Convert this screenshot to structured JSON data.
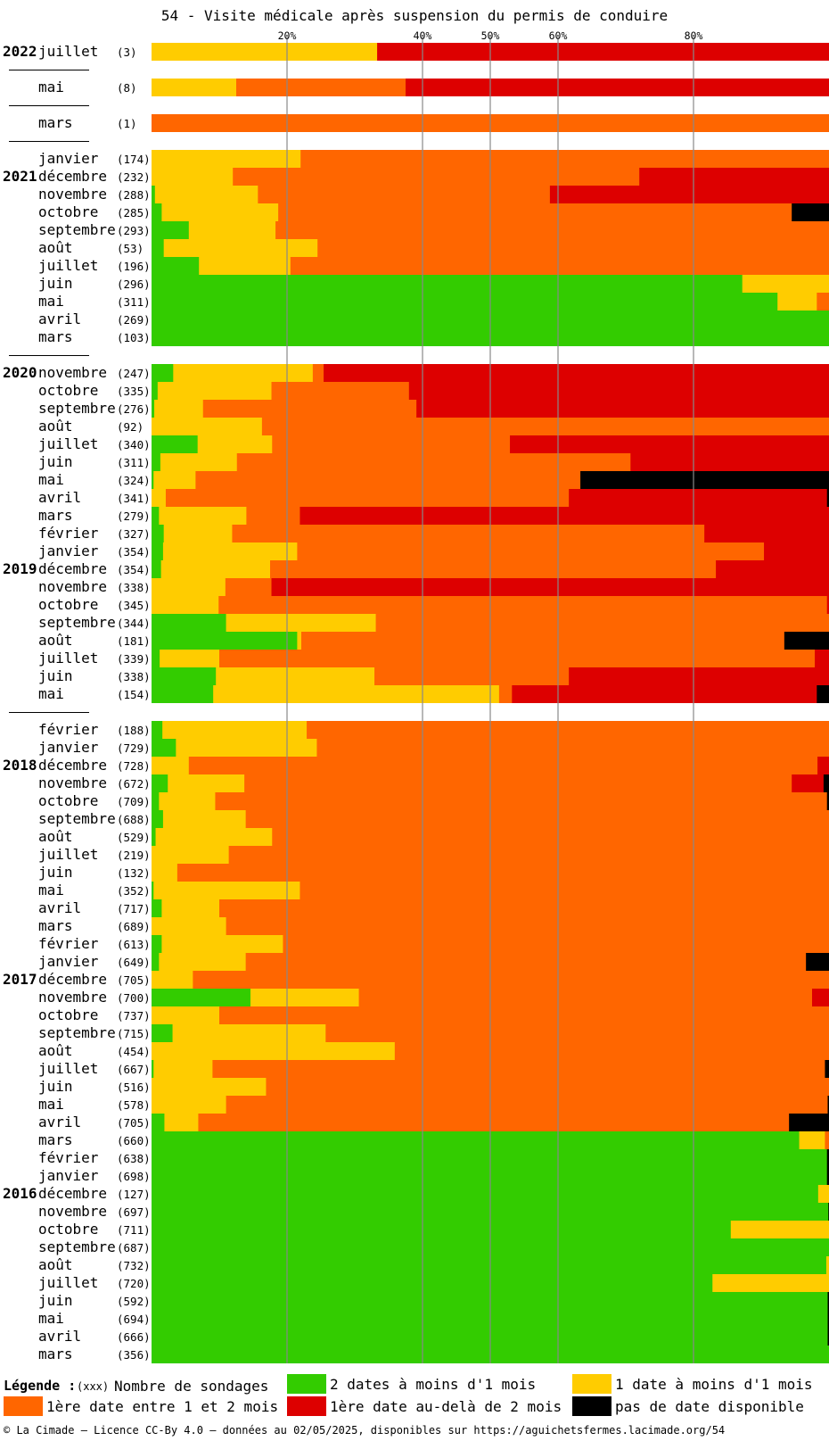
{
  "chart_data": {
    "type": "bar",
    "orientation": "horizontal",
    "stacked": true,
    "title": "54 - Visite médicale après suspension du permis de conduire",
    "x_ticks": [
      {
        "value": 20,
        "label": "20%"
      },
      {
        "value": 40,
        "label": "40%"
      },
      {
        "value": 50,
        "label": "50%"
      },
      {
        "value": 60,
        "label": "60%"
      },
      {
        "value": 80,
        "label": "80%"
      }
    ],
    "xlim": [
      0,
      100
    ],
    "categories_legend": [
      {
        "key": "g2",
        "label": "2 dates à moins d'1 mois",
        "color": "#33cc00"
      },
      {
        "key": "y1",
        "label": "1 date à moins d'1 mois",
        "color": "#ffcc00"
      },
      {
        "key": "o",
        "label": "1ère date entre 1 et 2 mois",
        "color": "#ff6600"
      },
      {
        "key": "r",
        "label": "1ère date au-delà de 2 mois",
        "color": "#dd0000"
      },
      {
        "key": "k",
        "label": "pas de date disponible",
        "color": "#000000"
      }
    ],
    "rows": [
      {
        "year": "2022",
        "month": "juillet",
        "n": "(3)",
        "v": [
          0,
          33.3,
          0,
          66.7,
          0
        ]
      },
      {
        "sep": true
      },
      {
        "month": "mai",
        "n": "(8)",
        "v": [
          0,
          12.5,
          25,
          62.5,
          0
        ]
      },
      {
        "sep": true
      },
      {
        "month": "mars",
        "n": "(1)",
        "v": [
          0,
          0,
          100,
          0,
          0
        ]
      },
      {
        "sep": true
      },
      {
        "month": "janvier",
        "n": "(174)",
        "v": [
          0,
          22,
          78,
          0,
          0
        ]
      },
      {
        "year": "2021",
        "month": "décembre",
        "n": "(232)",
        "v": [
          0,
          12,
          60,
          28,
          0
        ]
      },
      {
        "month": "novembre",
        "n": "(288)",
        "v": [
          0.5,
          15.2,
          43.1,
          41.2,
          0
        ]
      },
      {
        "month": "octobre",
        "n": "(285)",
        "v": [
          1.5,
          17.2,
          75.8,
          0,
          5.5
        ]
      },
      {
        "month": "septembre",
        "n": "(293)",
        "v": [
          5.5,
          12.8,
          81.7,
          0,
          0
        ]
      },
      {
        "month": "août",
        "n": "(53)",
        "v": [
          1.8,
          22.7,
          75.5,
          0,
          0
        ]
      },
      {
        "month": "juillet",
        "n": "(196)",
        "v": [
          7,
          13.5,
          79.5,
          0,
          0
        ]
      },
      {
        "month": "juin",
        "n": "(296)",
        "v": [
          87.2,
          12.8,
          0,
          0,
          0
        ]
      },
      {
        "month": "mai",
        "n": "(311)",
        "v": [
          92.4,
          5.8,
          1.8,
          0,
          0
        ]
      },
      {
        "month": "avril",
        "n": "(269)",
        "v": [
          100,
          0,
          0,
          0,
          0
        ]
      },
      {
        "month": "mars",
        "n": "(103)",
        "v": [
          100,
          0,
          0,
          0,
          0
        ]
      },
      {
        "sep": true
      },
      {
        "year": "2020",
        "month": "novembre",
        "n": "(247)",
        "v": [
          3.2,
          20.6,
          1.6,
          74.6,
          0
        ]
      },
      {
        "month": "octobre",
        "n": "(335)",
        "v": [
          0.9,
          16.8,
          20.3,
          62,
          0
        ]
      },
      {
        "month": "septembre",
        "n": "(276)",
        "v": [
          0.4,
          7.2,
          31.5,
          60.9,
          0
        ]
      },
      {
        "month": "août",
        "n": "(92)",
        "v": [
          0,
          16.3,
          83.7,
          0,
          0
        ]
      },
      {
        "month": "juillet",
        "n": "(340)",
        "v": [
          6.8,
          11,
          35.1,
          47.1,
          0
        ]
      },
      {
        "month": "juin",
        "n": "(311)",
        "v": [
          1.3,
          11.3,
          58.1,
          29.3,
          0
        ]
      },
      {
        "month": "mai",
        "n": "(324)",
        "v": [
          0.3,
          6.2,
          56.8,
          0,
          36.7
        ]
      },
      {
        "month": "avril",
        "n": "(341)",
        "v": [
          0,
          2.1,
          59.5,
          38.1,
          0.3
        ]
      },
      {
        "month": "mars",
        "n": "(279)",
        "v": [
          1.1,
          12.9,
          7.9,
          78.1,
          0
        ]
      },
      {
        "month": "février",
        "n": "(327)",
        "v": [
          1.8,
          10.1,
          69.7,
          18.4,
          0
        ]
      },
      {
        "month": "janvier",
        "n": "(354)",
        "v": [
          1.7,
          19.8,
          68.9,
          9.6,
          0
        ]
      },
      {
        "year": "2019",
        "month": "décembre",
        "n": "(354)",
        "v": [
          1.4,
          16.1,
          65.8,
          16.7,
          0
        ]
      },
      {
        "month": "novembre",
        "n": "(338)",
        "v": [
          0,
          10.9,
          6.8,
          82.3,
          0
        ]
      },
      {
        "month": "octobre",
        "n": "(345)",
        "v": [
          0,
          9.9,
          89.8,
          0.3,
          0
        ]
      },
      {
        "month": "septembre",
        "n": "(344)",
        "v": [
          11,
          22.1,
          66.9,
          0,
          0
        ]
      },
      {
        "month": "août",
        "n": "(181)",
        "v": [
          21.5,
          0.6,
          71.3,
          0,
          6.6
        ]
      },
      {
        "month": "juillet",
        "n": "(339)",
        "v": [
          1.2,
          8.8,
          87.9,
          2.1,
          0
        ]
      },
      {
        "month": "juin",
        "n": "(338)",
        "v": [
          9.5,
          23.4,
          28.7,
          38.4,
          0
        ]
      },
      {
        "month": "mai",
        "n": "(154)",
        "v": [
          9.1,
          42.2,
          1.9,
          45,
          1.8
        ]
      },
      {
        "sep": true
      },
      {
        "month": "février",
        "n": "(188)",
        "v": [
          1.6,
          21.3,
          77.1,
          0,
          0
        ]
      },
      {
        "month": "janvier",
        "n": "(729)",
        "v": [
          3.6,
          20.8,
          75.6,
          0,
          0
        ]
      },
      {
        "year": "2018",
        "month": "décembre",
        "n": "(728)",
        "v": [
          0,
          5.5,
          92.8,
          1.7,
          0
        ]
      },
      {
        "month": "novembre",
        "n": "(672)",
        "v": [
          2.4,
          11.3,
          80.8,
          4.7,
          0.8
        ]
      },
      {
        "month": "octobre",
        "n": "(709)",
        "v": [
          1.1,
          8.3,
          90.3,
          0,
          0.3
        ]
      },
      {
        "month": "septembre",
        "n": "(688)",
        "v": [
          1.7,
          12.2,
          86.1,
          0,
          0
        ]
      },
      {
        "month": "août",
        "n": "(529)",
        "v": [
          0.6,
          17.2,
          82.2,
          0,
          0
        ]
      },
      {
        "month": "juillet",
        "n": "(219)",
        "v": [
          0,
          11.4,
          88.6,
          0,
          0
        ]
      },
      {
        "month": "juin",
        "n": "(132)",
        "v": [
          0,
          3.8,
          96.2,
          0,
          0
        ]
      },
      {
        "month": "mai",
        "n": "(352)",
        "v": [
          0.3,
          21.6,
          78.1,
          0,
          0
        ]
      },
      {
        "month": "avril",
        "n": "(717)",
        "v": [
          1.5,
          8.5,
          90,
          0,
          0
        ]
      },
      {
        "month": "mars",
        "n": "(689)",
        "v": [
          0,
          11,
          89,
          0,
          0
        ]
      },
      {
        "month": "février",
        "n": "(613)",
        "v": [
          1.5,
          17.9,
          80.6,
          0,
          0
        ]
      },
      {
        "month": "janvier",
        "n": "(649)",
        "v": [
          1.1,
          12.8,
          82.7,
          0,
          3.4
        ]
      },
      {
        "year": "2017",
        "month": "décembre",
        "n": "(705)",
        "v": [
          0,
          6.1,
          93.9,
          0,
          0
        ]
      },
      {
        "month": "novembre",
        "n": "(700)",
        "v": [
          14.6,
          16,
          66.9,
          2.5,
          0
        ]
      },
      {
        "month": "octobre",
        "n": "(737)",
        "v": [
          0,
          10,
          90,
          0,
          0
        ]
      },
      {
        "month": "septembre",
        "n": "(715)",
        "v": [
          3.1,
          22.6,
          74.3,
          0,
          0
        ]
      },
      {
        "month": "août",
        "n": "(454)",
        "v": [
          0,
          35.9,
          64.1,
          0,
          0
        ]
      },
      {
        "month": "juillet",
        "n": "(667)",
        "v": [
          0.3,
          8.7,
          90.4,
          0,
          0.6
        ]
      },
      {
        "month": "juin",
        "n": "(516)",
        "v": [
          0,
          16.9,
          83.1,
          0,
          0
        ]
      },
      {
        "month": "mai",
        "n": "(578)",
        "v": [
          0,
          11,
          88.8,
          0,
          0.2
        ]
      },
      {
        "month": "avril",
        "n": "(705)",
        "v": [
          1.9,
          5,
          87.2,
          0,
          5.9
        ]
      },
      {
        "month": "mars",
        "n": "(660)",
        "v": [
          95.6,
          3.8,
          0.6,
          0,
          0
        ]
      },
      {
        "month": "février",
        "n": "(638)",
        "v": [
          99.7,
          0,
          0,
          0,
          0.3
        ]
      },
      {
        "month": "janvier",
        "n": "(698)",
        "v": [
          99.7,
          0,
          0,
          0,
          0.3
        ]
      },
      {
        "year": "2016",
        "month": "décembre",
        "n": "(127)",
        "v": [
          98.4,
          1.6,
          0,
          0,
          0
        ]
      },
      {
        "month": "novembre",
        "n": "(697)",
        "v": [
          99.9,
          0,
          0,
          0,
          0.1
        ]
      },
      {
        "month": "octobre",
        "n": "(711)",
        "v": [
          85.5,
          14.5,
          0,
          0,
          0
        ]
      },
      {
        "month": "septembre",
        "n": "(687)",
        "v": [
          100,
          0,
          0,
          0,
          0
        ]
      },
      {
        "month": "août",
        "n": "(732)",
        "v": [
          99.6,
          0.4,
          0,
          0,
          0
        ]
      },
      {
        "month": "juillet",
        "n": "(720)",
        "v": [
          82.8,
          17.2,
          0,
          0,
          0
        ]
      },
      {
        "month": "juin",
        "n": "(592)",
        "v": [
          99.8,
          0,
          0,
          0,
          0.2
        ]
      },
      {
        "month": "mai",
        "n": "(694)",
        "v": [
          99.8,
          0,
          0,
          0,
          0.2
        ]
      },
      {
        "month": "avril",
        "n": "(666)",
        "v": [
          99.8,
          0,
          0,
          0,
          0.2
        ]
      },
      {
        "month": "mars",
        "n": "(356)",
        "v": [
          100,
          0,
          0,
          0,
          0
        ]
      }
    ]
  },
  "legend": {
    "heading": "Légende :",
    "count_marker": "(xxx)",
    "count_label": "Nombre de sondages",
    "items": [
      {
        "label": "2 dates à moins d'1 mois",
        "color": "#33cc00"
      },
      {
        "label": "1 date à moins d'1 mois",
        "color": "#ffcc00"
      },
      {
        "label": "1ère date entre 1 et 2 mois",
        "color": "#ff6600"
      },
      {
        "label": "1ère date au-delà de 2 mois",
        "color": "#dd0000"
      },
      {
        "label": "pas de date disponible",
        "color": "#000000"
      }
    ]
  },
  "footer": "© La Cimade – Licence CC-By 4.0 – données au 02/05/2025, disponibles sur https://aguichetsfermes.lacimade.org/54"
}
